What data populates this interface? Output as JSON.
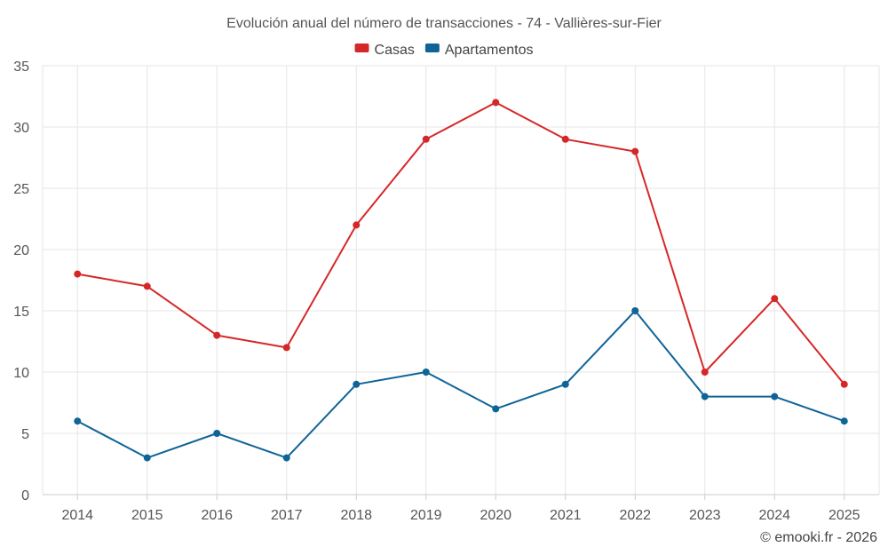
{
  "chart_data": {
    "type": "line",
    "title": "Evolución anual del número de transacciones - 74 - Vallières-sur-Fier",
    "xlabel": "",
    "ylabel": "",
    "categories": [
      "2014",
      "2015",
      "2016",
      "2017",
      "2018",
      "2019",
      "2020",
      "2021",
      "2022",
      "2023",
      "2024",
      "2025"
    ],
    "ylim": [
      0,
      35
    ],
    "yticks": [
      0,
      5,
      10,
      15,
      20,
      25,
      30,
      35
    ],
    "grid": true,
    "legend_position": "top-center",
    "series": [
      {
        "name": "Casas",
        "color": "#d62728",
        "values": [
          18,
          17,
          13,
          12,
          22,
          29,
          32,
          29,
          28,
          10,
          16,
          9
        ]
      },
      {
        "name": "Apartamentos",
        "color": "#0e6497",
        "values": [
          6,
          3,
          5,
          3,
          9,
          10,
          7,
          9,
          15,
          8,
          8,
          6
        ]
      }
    ]
  },
  "credit": "© emooki.fr - 2026"
}
